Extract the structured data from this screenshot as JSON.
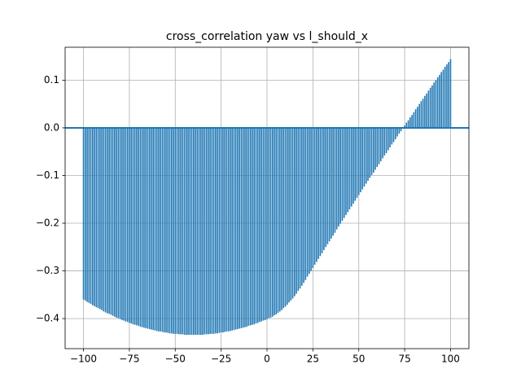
{
  "chart_data": {
    "type": "xcorr",
    "title": "cross_correlation yaw vs l_should_x",
    "color": "#1f77b4",
    "grid": true,
    "xlim": [
      -110,
      110
    ],
    "ylim": [
      -0.463,
      0.169
    ],
    "xticks": [
      {
        "value": -100,
        "label": "−100"
      },
      {
        "value": -75,
        "label": "−75"
      },
      {
        "value": -50,
        "label": "−50"
      },
      {
        "value": -25,
        "label": "−25"
      },
      0,
      25,
      50,
      75,
      100
    ],
    "yticks": [
      {
        "value": -0.4,
        "label": "−0.4"
      },
      {
        "value": -0.3,
        "label": "−0.3"
      },
      {
        "value": -0.2,
        "label": "−0.2"
      },
      {
        "value": -0.1,
        "label": "−0.1"
      },
      {
        "value": 0,
        "label": "0.0"
      },
      0.1
    ],
    "x": [
      -100,
      -99,
      -98,
      -97,
      -96,
      -95,
      -94,
      -93,
      -92,
      -91,
      -90,
      -89,
      -88,
      -87,
      -86,
      -85,
      -84,
      -83,
      -82,
      -81,
      -80,
      -79,
      -78,
      -77,
      -76,
      -75,
      -74,
      -73,
      -72,
      -71,
      -70,
      -69,
      -68,
      -67,
      -66,
      -65,
      -64,
      -63,
      -62,
      -61,
      -60,
      -59,
      -58,
      -57,
      -56,
      -55,
      -54,
      -53,
      -52,
      -51,
      -50,
      -49,
      -48,
      -47,
      -46,
      -45,
      -44,
      -43,
      -42,
      -41,
      -40,
      -39,
      -38,
      -37,
      -36,
      -35,
      -34,
      -33,
      -32,
      -31,
      -30,
      -29,
      -28,
      -27,
      -26,
      -25,
      -24,
      -23,
      -22,
      -21,
      -20,
      -19,
      -18,
      -17,
      -16,
      -15,
      -14,
      -13,
      -12,
      -11,
      -10,
      -9,
      -8,
      -7,
      -6,
      -5,
      -4,
      -3,
      -2,
      -1,
      0,
      1,
      2,
      3,
      4,
      5,
      6,
      7,
      8,
      9,
      10,
      11,
      12,
      13,
      14,
      15,
      16,
      17,
      18,
      19,
      20,
      21,
      22,
      23,
      24,
      25,
      26,
      27,
      28,
      29,
      30,
      31,
      32,
      33,
      34,
      35,
      36,
      37,
      38,
      39,
      40,
      41,
      42,
      43,
      44,
      45,
      46,
      47,
      48,
      49,
      50,
      51,
      52,
      53,
      54,
      55,
      56,
      57,
      58,
      59,
      60,
      61,
      62,
      63,
      64,
      65,
      66,
      67,
      68,
      69,
      70,
      71,
      72,
      73,
      74,
      75,
      76,
      77,
      78,
      79,
      80,
      81,
      82,
      83,
      84,
      85,
      86,
      87,
      88,
      89,
      90,
      91,
      92,
      93,
      94,
      95,
      96,
      97,
      98,
      99,
      100
    ],
    "values": [
      -0.36,
      -0.362,
      -0.365,
      -0.367,
      -0.369,
      -0.372,
      -0.374,
      -0.376,
      -0.378,
      -0.38,
      -0.382,
      -0.385,
      -0.387,
      -0.389,
      -0.39,
      -0.392,
      -0.394,
      -0.396,
      -0.398,
      -0.399,
      -0.401,
      -0.403,
      -0.404,
      -0.406,
      -0.407,
      -0.409,
      -0.41,
      -0.412,
      -0.413,
      -0.414,
      -0.415,
      -0.417,
      -0.418,
      -0.419,
      -0.42,
      -0.421,
      -0.422,
      -0.423,
      -0.424,
      -0.425,
      -0.426,
      -0.427,
      -0.427,
      -0.428,
      -0.429,
      -0.429,
      -0.43,
      -0.431,
      -0.431,
      -0.432,
      -0.432,
      -0.432,
      -0.433,
      -0.433,
      -0.433,
      -0.434,
      -0.434,
      -0.434,
      -0.434,
      -0.434,
      -0.434,
      -0.434,
      -0.434,
      -0.434,
      -0.434,
      -0.434,
      -0.433,
      -0.433,
      -0.433,
      -0.432,
      -0.432,
      -0.432,
      -0.431,
      -0.431,
      -0.43,
      -0.429,
      -0.429,
      -0.428,
      -0.427,
      -0.427,
      -0.426,
      -0.425,
      -0.424,
      -0.423,
      -0.422,
      -0.421,
      -0.42,
      -0.419,
      -0.418,
      -0.417,
      -0.415,
      -0.414,
      -0.413,
      -0.412,
      -0.41,
      -0.409,
      -0.407,
      -0.406,
      -0.404,
      -0.403,
      -0.401,
      -0.399,
      -0.398,
      -0.396,
      -0.393,
      -0.391,
      -0.388,
      -0.385,
      -0.382,
      -0.378,
      -0.375,
      -0.371,
      -0.366,
      -0.362,
      -0.358,
      -0.353,
      -0.348,
      -0.342,
      -0.337,
      -0.331,
      -0.325,
      -0.319,
      -0.312,
      -0.306,
      -0.3,
      -0.294,
      -0.287,
      -0.281,
      -0.275,
      -0.269,
      -0.263,
      -0.256,
      -0.25,
      -0.244,
      -0.238,
      -0.232,
      -0.226,
      -0.22,
      -0.213,
      -0.207,
      -0.201,
      -0.195,
      -0.189,
      -0.183,
      -0.177,
      -0.171,
      -0.165,
      -0.159,
      -0.153,
      -0.147,
      -0.141,
      -0.135,
      -0.129,
      -0.123,
      -0.117,
      -0.111,
      -0.105,
      -0.099,
      -0.094,
      -0.088,
      -0.082,
      -0.076,
      -0.07,
      -0.064,
      -0.058,
      -0.053,
      -0.047,
      -0.041,
      -0.035,
      -0.03,
      -0.024,
      -0.018,
      -0.012,
      -0.007,
      -0.001,
      0.005,
      0.011,
      0.016,
      0.022,
      0.027,
      0.033,
      0.039,
      0.044,
      0.05,
      0.056,
      0.061,
      0.067,
      0.072,
      0.078,
      0.084,
      0.089,
      0.095,
      0.1,
      0.106,
      0.111,
      0.117,
      0.122,
      0.128,
      0.133,
      0.138,
      0.144
    ]
  }
}
